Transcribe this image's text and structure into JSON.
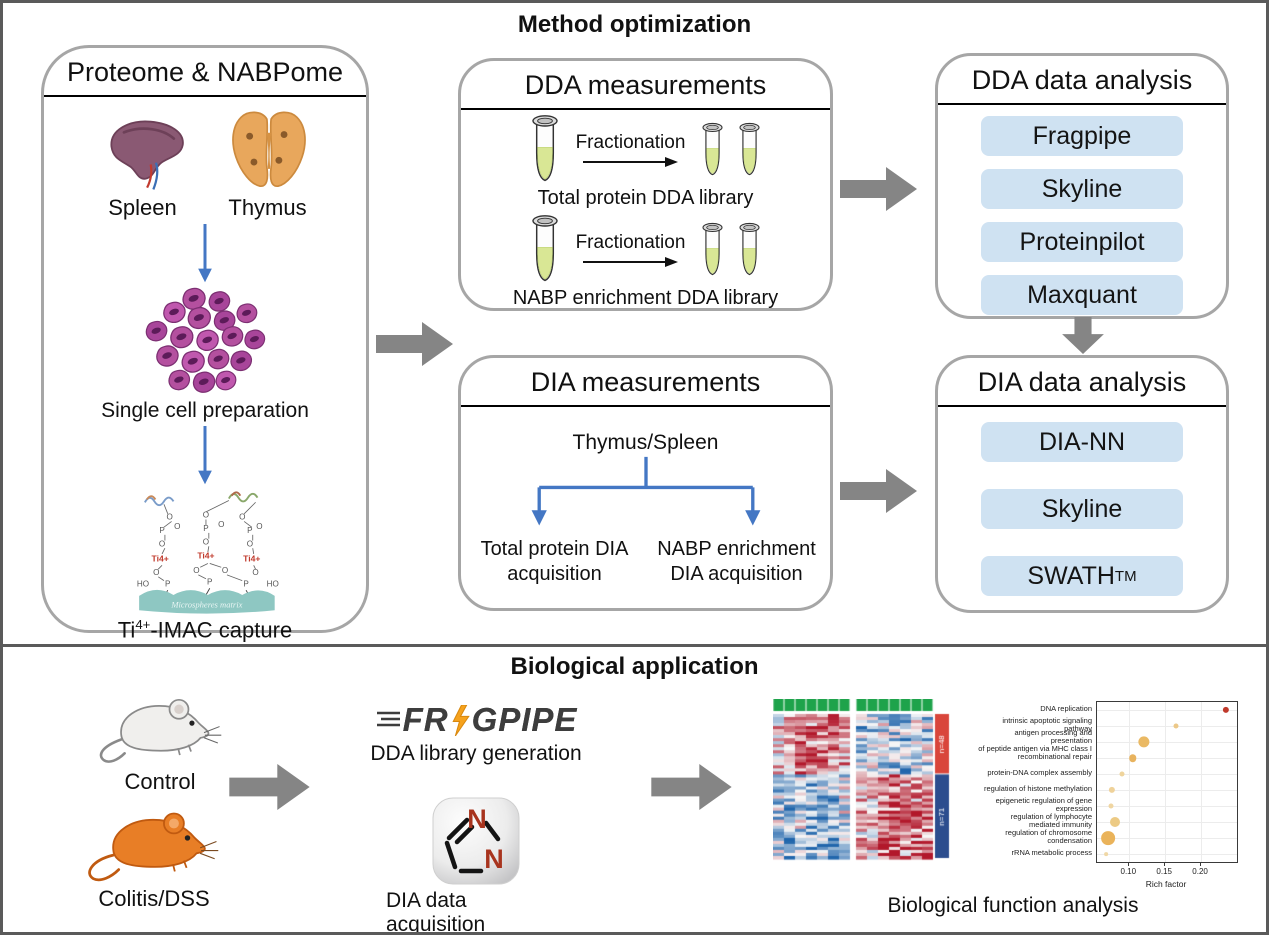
{
  "figure": {
    "top_title": "Method optimization",
    "bottom_title": "Biological application"
  },
  "colors": {
    "panel_border": "#a6a6a6",
    "tool_button_bg": "#cfe2f2",
    "block_arrow": "#858585",
    "flow_arrow_blue": "#4477c4",
    "heatmap_annotation_green": "#1ea34b",
    "cluster_red": "#d9463b",
    "cluster_blue": "#2c4d8e",
    "tube_liquid": "#d9e795",
    "matrix_teal": "#8ec7c2"
  },
  "proteome_panel": {
    "title": "Proteome & NABPome",
    "spleen_label": "Spleen",
    "thymus_label": "Thymus",
    "single_cell_label": "Single cell preparation",
    "chem": {
      "ti": "Ti4+",
      "o": "O",
      "p": "P",
      "ho": "HO",
      "matrix_label": "Microspheres matrix"
    },
    "capture_label": {
      "base": "Ti",
      "sup": "4+",
      "rest": "-IMAC capture"
    }
  },
  "dda_measurements": {
    "title": "DDA measurements",
    "fractionation_label": "Fractionation",
    "total_caption": "Total protein DDA library",
    "nabp_caption": "NABP enrichment DDA library"
  },
  "dda_analysis": {
    "title": "DDA data analysis",
    "tools": [
      "Fragpipe",
      "Skyline",
      "Proteinpilot",
      "Maxquant"
    ]
  },
  "dia_measurements": {
    "title": "DIA measurements",
    "source_label": "Thymus/Spleen",
    "branch_left": "Total protein DIA\nacquisition",
    "branch_right": "NABP enrichment\nDIA acquisition"
  },
  "dia_analysis": {
    "title": "DIA data analysis",
    "tools": [
      "DIA-NN",
      "Skyline",
      "SWATH"
    ],
    "swath_sup": "TM"
  },
  "application": {
    "control_label": "Control",
    "colitis_label": "Colitis/DSS",
    "fragpipe_logo": {
      "part1": "FR",
      "part2": "GPIPE"
    },
    "dda_library_caption": "DDA library generation",
    "diann_icon": {
      "n1": "N",
      "n2": "N"
    },
    "dia_acquisition_caption": "DIA data acquisition",
    "results_caption": "Biological function analysis"
  },
  "chart_data": [
    {
      "type": "heatmap",
      "n_rows": 48,
      "column_groups": [
        7,
        7
      ],
      "annotation_color": "#1ea34b",
      "row_clusters": [
        {
          "label": "n=48",
          "color": "#d9463b",
          "fraction": 0.42,
          "left_bias": 0.4,
          "right_bias": -0.25
        },
        {
          "label": "n=71",
          "color": "#2c4d8e",
          "fraction": 0.58,
          "left_bias": -0.35,
          "right_bias": 0.45
        }
      ],
      "palette": {
        "low": "#2166ac",
        "mid": "#f7f7f7",
        "high": "#b2182b"
      }
    },
    {
      "type": "scatter",
      "xlabel": "Rich factor",
      "xlim": [
        0.055,
        0.25
      ],
      "xticks": [
        "0.10",
        "0.15",
        "0.20"
      ],
      "grid": true,
      "points": [
        {
          "label": "DNA replication",
          "rich_factor": 0.235,
          "dot_size": 5,
          "color": "#c0392b"
        },
        {
          "label": "intrinsic apoptotic signaling pathway",
          "rich_factor": 0.165,
          "dot_size": 4,
          "color": "#ecc888"
        },
        {
          "label": "antigen processing and presentation\nof peptide antigen via MHC class I",
          "rich_factor": 0.12,
          "dot_size": 9,
          "color": "#eab964"
        },
        {
          "label": "recombinational repair",
          "rich_factor": 0.105,
          "dot_size": 6,
          "color": "#e8b35e"
        },
        {
          "label": "protein-DNA complex assembly",
          "rich_factor": 0.09,
          "dot_size": 4,
          "color": "#efd49c"
        },
        {
          "label": "regulation of histone methylation",
          "rich_factor": 0.076,
          "dot_size": 5,
          "color": "#efd29a"
        },
        {
          "label": "epigenetic regulation of gene expression",
          "rich_factor": 0.075,
          "dot_size": 4,
          "color": "#f0d6a2"
        },
        {
          "label": "regulation of lymphocyte mediated immunity",
          "rich_factor": 0.08,
          "dot_size": 8,
          "color": "#ecca84"
        },
        {
          "label": "regulation of chromosome condensation",
          "rich_factor": 0.07,
          "dot_size": 11,
          "color": "#eab35a"
        },
        {
          "label": "rRNA metabolic process",
          "rich_factor": 0.068,
          "dot_size": 3,
          "color": "#f0d8a6"
        }
      ]
    }
  ]
}
